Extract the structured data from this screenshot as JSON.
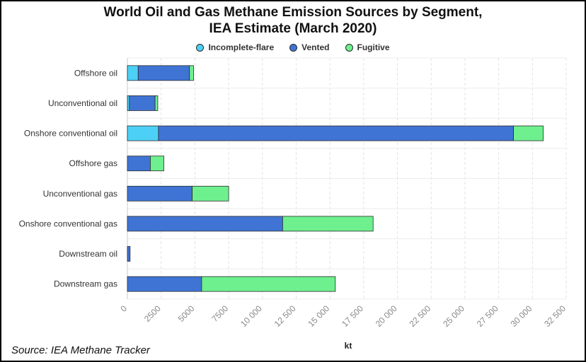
{
  "title_line1": "World Oil and Gas Methane Emission Sources by Segment,",
  "title_line2": "IEA Estimate (March 2020)",
  "source": "Source: IEA Methane Tracker",
  "chart_data": {
    "type": "bar",
    "orientation": "horizontal",
    "stacked": true,
    "title": "World Oil and Gas Methane Emission Sources by Segment, IEA Estimate (March 2020)",
    "xlabel": "kt",
    "ylabel": "",
    "xlim": [
      0,
      32500
    ],
    "xticks": [
      0,
      2500,
      5000,
      7500,
      10000,
      12500,
      15000,
      17500,
      20000,
      22500,
      25000,
      27500,
      30000,
      32500
    ],
    "xtick_labels": [
      "0",
      "2500",
      "5000",
      "7500",
      "10 000",
      "12 500",
      "15 000",
      "17 500",
      "20 000",
      "22 500",
      "25 000",
      "27 500",
      "30 000",
      "32 500"
    ],
    "grid": true,
    "legend_position": "top-center",
    "categories": [
      "Offshore oil",
      "Unconventional oil",
      "Onshore conventional oil",
      "Offshore gas",
      "Unconventional gas",
      "Onshore conventional gas",
      "Downstream oil",
      "Downstream gas"
    ],
    "series": [
      {
        "name": "Incomplete-flare",
        "color": "#4dd0f5",
        "values": [
          800,
          150,
          2300,
          0,
          0,
          0,
          0,
          0
        ]
      },
      {
        "name": "Vented",
        "color": "#3f74d4",
        "values": [
          3800,
          1900,
          26300,
          1700,
          4800,
          11500,
          200,
          5500
        ]
      },
      {
        "name": "Fugitive",
        "color": "#6ef08f",
        "values": [
          300,
          200,
          2200,
          1000,
          2700,
          6700,
          0,
          9900
        ]
      }
    ]
  }
}
